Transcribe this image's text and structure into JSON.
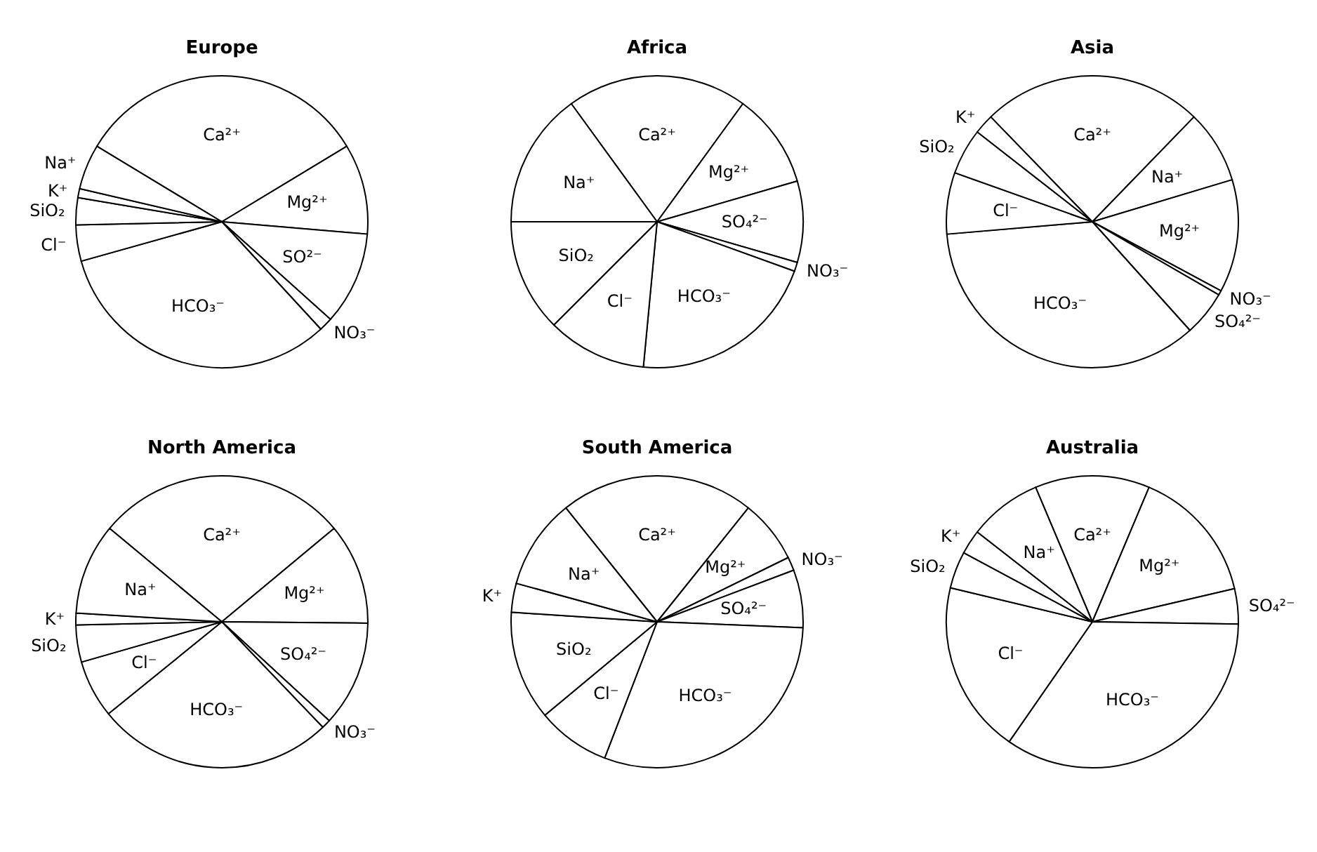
{
  "chart_data": [
    {
      "type": "pie",
      "title": "Europe",
      "categories": [
        "Ca²⁺",
        "Mg²⁺",
        "SO²⁻",
        "NO₃⁻",
        "HCO₃⁻",
        "Cl⁻",
        "SiO₂",
        "K⁺",
        "Na⁺"
      ],
      "values": [
        32.7,
        10,
        10.3,
        1.5,
        32.5,
        4,
        3,
        1,
        5
      ],
      "colors": [
        "#ffffff",
        "#ffffff",
        "#ffffff",
        "#ffffff",
        "#ffffff",
        "#ffffff",
        "#ffffff",
        "#ffffff",
        "#ffffff"
      ]
    },
    {
      "type": "pie",
      "title": "Africa",
      "categories": [
        "Ca²⁺",
        "Mg²⁺",
        "SO₄²⁻",
        "NO₃⁻",
        "HCO₃⁻",
        "Cl⁻",
        "SiO₂",
        "Na⁺"
      ],
      "values": [
        20,
        10.5,
        9,
        1,
        21,
        11,
        12.5,
        15
      ],
      "colors": [
        "#ffffff",
        "#ffffff",
        "#ffffff",
        "#ffffff",
        "#ffffff",
        "#ffffff",
        "#ffffff",
        "#ffffff"
      ]
    },
    {
      "type": "pie",
      "title": "Asia",
      "categories": [
        "Ca²⁺",
        "Na⁺",
        "Mg²⁺",
        "NO₃⁻",
        "SO₄²⁻",
        "HCO₃⁻",
        "Cl⁻",
        "SiO₂",
        "K⁺"
      ],
      "values": [
        24.5,
        8.1,
        12.5,
        0.5,
        5,
        35.3,
        6.8,
        5.1,
        2.2
      ],
      "colors": [
        "#ffffff",
        "#ffffff",
        "#ffffff",
        "#ffffff",
        "#ffffff",
        "#ffffff",
        "#ffffff",
        "#ffffff",
        "#ffffff"
      ]
    },
    {
      "type": "pie",
      "title": "North America",
      "categories": [
        "Ca²⁺",
        "Mg²⁺",
        "SO₄²⁻",
        "NO₃⁻",
        "HCO₃⁻",
        "Cl⁻",
        "SiO₂",
        "K⁺",
        "Na⁺"
      ],
      "values": [
        27.9,
        11.2,
        11.7,
        1,
        26.3,
        6.4,
        4.1,
        1.3,
        10.1
      ],
      "colors": [
        "#ffffff",
        "#ffffff",
        "#ffffff",
        "#ffffff",
        "#ffffff",
        "#ffffff",
        "#ffffff",
        "#ffffff",
        "#ffffff"
      ]
    },
    {
      "type": "pie",
      "title": "South America",
      "categories": [
        "Ca²⁺",
        "Mg²⁺",
        "NO₃⁻",
        "SO₄²⁻",
        "HCO₃⁻",
        "Cl⁻",
        "SiO₂",
        "K⁺",
        "Na⁺"
      ],
      "values": [
        21.5,
        7,
        1.5,
        6.4,
        30.2,
        8.1,
        12.1,
        3.2,
        10
      ],
      "colors": [
        "#ffffff",
        "#ffffff",
        "#ffffff",
        "#ffffff",
        "#ffffff",
        "#ffffff",
        "#ffffff",
        "#ffffff",
        "#ffffff"
      ]
    },
    {
      "type": "pie",
      "title": "Australia",
      "categories": [
        "Ca²⁺",
        "Mg²⁺",
        "SO₄²⁻",
        "HCO₃⁻",
        "Cl⁻",
        "SiO₂",
        "K⁺",
        "Na⁺"
      ],
      "values": [
        12.7,
        15,
        3.9,
        34.4,
        19.1,
        4.1,
        2.7,
        8.1
      ],
      "colors": [
        "#ffffff",
        "#ffffff",
        "#ffffff",
        "#ffffff",
        "#ffffff",
        "#ffffff",
        "#ffffff",
        "#ffffff"
      ]
    }
  ]
}
